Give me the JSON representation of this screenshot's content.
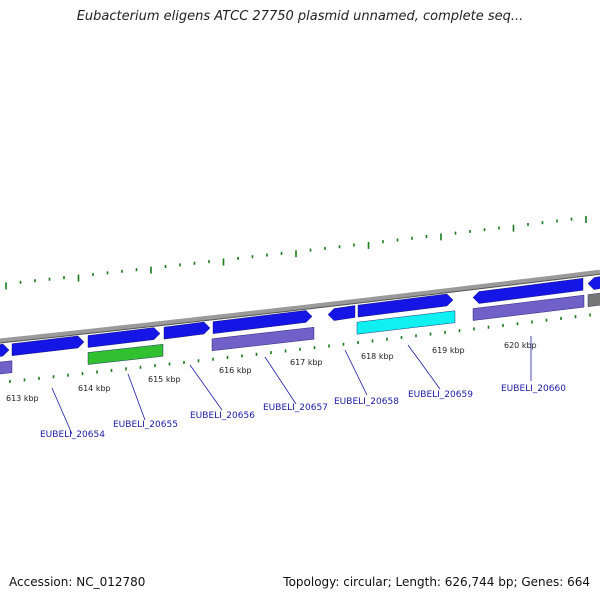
{
  "title": "Eubacterium eligens ATCC 27750 plasmid unnamed, complete seq...",
  "footer": {
    "accession": "Accession: NC_012780",
    "summary": "Topology: circular; Length: 626,744 bp; Genes: 664"
  },
  "colors": {
    "backbone": "#8a8a8a",
    "cds_forward": "#1515e6",
    "cds_reverse": "#1515e6",
    "track_purple": "#7060c8",
    "track_green": "#30c030",
    "track_cyan": "#10f0f0",
    "track_gray": "#777777",
    "gc_ticks": "#1a7a1a",
    "labels": "#1a1aa6"
  },
  "scale_labels": [
    "613 kbp",
    "614 kbp",
    "615 kbp",
    "616 kbp",
    "617 kbp",
    "618 kbp",
    "619 kbp",
    "620 kbp"
  ],
  "gene_labels": [
    "EUBELI_20654",
    "EUBELI_20655",
    "EUBELI_20656",
    "EUBELI_20657",
    "EUBELI_20658",
    "EUBELI_20659",
    "EUBELI_20660"
  ]
}
